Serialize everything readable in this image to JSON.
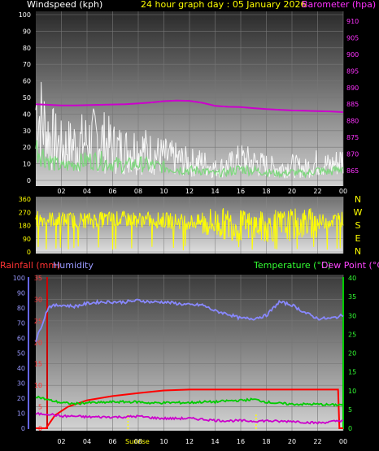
{
  "header": {
    "left_title": "Windspeed (kph)",
    "center_title": "24 hour graph day : 05 January 2026",
    "right_title": "Barometer (hpa)"
  },
  "colors": {
    "windspeed": "#ffffff",
    "wind_avg": "#7fd77f",
    "barometer": "#cc00cc",
    "direction": "#ffff00",
    "rainfall": "#ff0000",
    "humidity": "#8888ff",
    "temperature": "#00cc00",
    "dewpoint": "#cc00cc",
    "sunrise": "#ffff00",
    "compass": "#ffff00"
  },
  "chart_data": [
    {
      "type": "line",
      "title": "24 hour graph day : 05 January 2026",
      "x_ticks": [
        "02",
        "04",
        "06",
        "08",
        "10",
        "12",
        "14",
        "16",
        "18",
        "20",
        "22",
        "00"
      ],
      "x_range_hours": [
        0,
        24
      ],
      "y_left_label": "Windspeed (kph)",
      "y_left_ticks": [
        "0",
        "10",
        "20",
        "30",
        "40",
        "50",
        "60",
        "70",
        "80",
        "90",
        "100"
      ],
      "ylim_left": [
        0,
        100
      ],
      "y_right_label": "Barometer (hpa)",
      "y_right_ticks": [
        "865",
        "870",
        "875",
        "880",
        "885",
        "890",
        "895",
        "900",
        "905",
        "910"
      ],
      "ylim_right": [
        862,
        912
      ],
      "grid": true,
      "series": [
        {
          "name": "Windspeed (kph)",
          "axis": "left",
          "x": [
            0,
            1,
            2,
            3,
            4,
            5,
            6,
            7,
            8,
            9,
            10,
            11,
            12,
            13,
            14,
            15,
            16,
            17,
            18,
            19,
            20,
            21,
            22,
            23,
            24
          ],
          "values": [
            48,
            30,
            22,
            24,
            26,
            28,
            22,
            20,
            22,
            18,
            16,
            14,
            12,
            12,
            8,
            10,
            14,
            12,
            10,
            8,
            10,
            8,
            12,
            10,
            14
          ]
        },
        {
          "name": "Wind average",
          "axis": "left",
          "x": [
            0,
            1,
            2,
            3,
            4,
            5,
            6,
            7,
            8,
            9,
            10,
            11,
            12,
            13,
            14,
            15,
            16,
            17,
            18,
            19,
            20,
            21,
            22,
            23,
            24
          ],
          "values": [
            20,
            12,
            8,
            10,
            12,
            12,
            10,
            9,
            10,
            9,
            8,
            7,
            6,
            6,
            4,
            5,
            7,
            6,
            5,
            4,
            5,
            4,
            6,
            5,
            8
          ]
        },
        {
          "name": "Barometer (hpa)",
          "axis": "right",
          "x": [
            0,
            1,
            2,
            3,
            4,
            5,
            6,
            7,
            8,
            9,
            10,
            11,
            12,
            13,
            14,
            15,
            16,
            17,
            18,
            19,
            20,
            21,
            22,
            23,
            24
          ],
          "values": [
            885,
            884.8,
            884.6,
            884.6,
            884.7,
            884.8,
            884.9,
            885,
            885.2,
            885.5,
            885.9,
            886.1,
            886,
            885.4,
            884.5,
            884.2,
            884.1,
            883.8,
            883.5,
            883.3,
            883.1,
            883,
            882.9,
            882.8,
            882.6
          ]
        }
      ]
    },
    {
      "type": "line",
      "x_range_hours": [
        0,
        24
      ],
      "y_ticks": [
        "0",
        "90",
        "180",
        "270",
        "360"
      ],
      "ylim": [
        0,
        360
      ],
      "compass_labels": [
        "N",
        "W",
        "S",
        "E",
        "N"
      ],
      "series": [
        {
          "name": "Wind direction",
          "x": [
            0,
            2,
            4,
            6,
            8,
            10,
            12,
            14,
            16,
            18,
            20,
            22,
            24
          ],
          "values": [
            225,
            220,
            215,
            225,
            220,
            215,
            205,
            195,
            180,
            170,
            185,
            200,
            225
          ]
        }
      ]
    },
    {
      "type": "line",
      "x_ticks": [
        "02",
        "04",
        "06",
        "08",
        "10",
        "12",
        "14",
        "16",
        "18",
        "20",
        "22",
        "00"
      ],
      "x_range_hours": [
        0,
        24
      ],
      "y_left_outer_label": "Rainfall (mm)",
      "y_left_outer_ticks": [
        "0",
        "5",
        "10",
        "15",
        "20",
        "25",
        "30",
        "35"
      ],
      "ylim_rainfall": [
        0,
        35
      ],
      "y_left_inner_label": "Humidity",
      "y_left_inner_ticks": [
        "0",
        "10",
        "20",
        "30",
        "40",
        "50",
        "60",
        "70",
        "80",
        "90",
        "100"
      ],
      "ylim_humidity": [
        0,
        100
      ],
      "y_right_label_temperature": "Temperature (°C)",
      "y_right_label_dewpoint": "Dew Point (°C)",
      "y_right_ticks": [
        "0",
        "5",
        "10",
        "15",
        "20",
        "25",
        "30",
        "35",
        "40"
      ],
      "ylim_right": [
        0,
        40
      ],
      "sunrise_label": "Sunrise",
      "sunrise_hour": 7.2,
      "sunset_hour": 17.2,
      "grid": true,
      "series": [
        {
          "name": "Rainfall (mm)",
          "axis": "rainfall",
          "x": [
            0,
            0.8,
            1.5,
            2.5,
            4,
            6,
            8,
            10,
            12,
            14,
            16,
            18,
            20,
            22,
            23.6,
            23.7,
            24
          ],
          "values": [
            0,
            0,
            3,
            5,
            6.5,
            7.5,
            8.2,
            8.8,
            9,
            9,
            9,
            9,
            9,
            9,
            9,
            0,
            0
          ]
        },
        {
          "name": "Humidity",
          "axis": "humidity",
          "x": [
            0,
            1,
            2,
            3,
            4,
            5,
            6,
            7,
            8,
            9,
            10,
            11,
            12,
            13,
            14,
            15,
            16,
            17,
            18,
            19,
            20,
            21,
            22,
            23,
            24
          ],
          "values": [
            58,
            81,
            82,
            81,
            83,
            84,
            84,
            84,
            85,
            84,
            84,
            83,
            82,
            82,
            78,
            76,
            73,
            73,
            75,
            84,
            82,
            77,
            73,
            73,
            75
          ]
        },
        {
          "name": "Temperature (°C)",
          "axis": "right",
          "x": [
            0,
            1,
            2,
            3,
            4,
            5,
            6,
            7,
            8,
            9,
            10,
            11,
            12,
            13,
            14,
            15,
            16,
            17,
            18,
            19,
            20,
            21,
            22,
            23,
            24
          ],
          "values": [
            8.5,
            7.5,
            6.8,
            6.5,
            6.8,
            6.8,
            7,
            7,
            7,
            6.7,
            6.8,
            6.8,
            6.8,
            7,
            7,
            7.3,
            7.4,
            7.7,
            7,
            6.6,
            6.4,
            6.4,
            6.4,
            6.2,
            6.3
          ]
        },
        {
          "name": "Dew Point (°C)",
          "axis": "right",
          "x": [
            0,
            1,
            2,
            3,
            4,
            5,
            6,
            7,
            8,
            9,
            10,
            11,
            12,
            13,
            14,
            15,
            16,
            17,
            18,
            19,
            20,
            21,
            22,
            23,
            24
          ],
          "values": [
            3.8,
            3.8,
            3.2,
            3.2,
            3,
            3,
            3,
            3,
            3.2,
            2.8,
            2.6,
            2.6,
            2.6,
            2.4,
            2.1,
            2,
            2,
            1.9,
            2,
            1.8,
            1.9,
            1.6,
            1.4,
            1.7,
            2.1
          ]
        }
      ]
    }
  ]
}
